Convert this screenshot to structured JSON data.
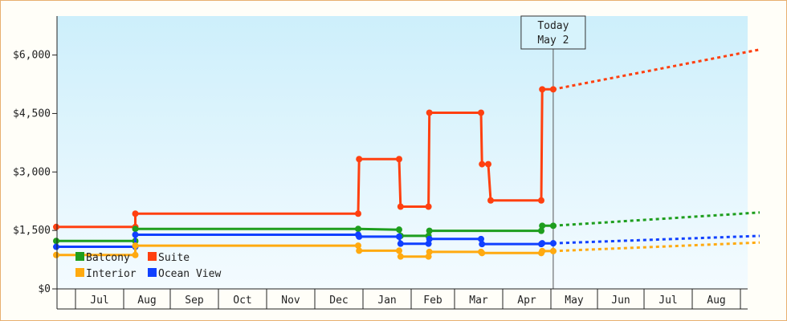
{
  "chart_data": {
    "type": "line",
    "title": "",
    "xlabel": "",
    "ylabel": "",
    "ylim": [
      0,
      7000
    ],
    "y_ticks": [
      {
        "value": 0,
        "label": "$0"
      },
      {
        "value": 1500,
        "label": "$1,500"
      },
      {
        "value": 3000,
        "label": "$3,000"
      },
      {
        "value": 4500,
        "label": "$4,500"
      },
      {
        "value": 6000,
        "label": "$6,000"
      }
    ],
    "x_months": [
      "Jul",
      "Aug",
      "Sep",
      "Oct",
      "Nov",
      "Dec",
      "Jan",
      "Feb",
      "Mar",
      "Apr",
      "May",
      "Jun",
      "Jul",
      "Aug"
    ],
    "today_marker": {
      "line1": "Today",
      "line2": "May 2",
      "x": 10.05
    },
    "legend": [
      {
        "label": "Balcony",
        "color": "#1e9e1e"
      },
      {
        "label": "Suite",
        "color": "#ff4010"
      },
      {
        "label": "Interior",
        "color": "#ffaa10"
      },
      {
        "label": "Ocean View",
        "color": "#1040ff"
      }
    ],
    "series": [
      {
        "color": "#ff4010",
        "points": [
          [
            -0.4,
            1590
          ],
          [
            1.25,
            1590
          ],
          [
            1.25,
            1930
          ],
          [
            5.9,
            1930
          ],
          [
            5.92,
            3330
          ],
          [
            6.75,
            3330
          ],
          [
            6.78,
            2110
          ],
          [
            7.4,
            2110
          ],
          [
            7.42,
            4520
          ],
          [
            8.55,
            4520
          ],
          [
            8.57,
            3200
          ],
          [
            8.7,
            3200
          ],
          [
            8.75,
            2270
          ],
          [
            9.8,
            2270
          ],
          [
            9.82,
            5120
          ],
          [
            10.05,
            5120
          ]
        ],
        "forecast": [
          [
            10.05,
            5120
          ],
          [
            14.4,
            6140
          ]
        ]
      },
      {
        "color": "#1e9e1e",
        "points": [
          [
            -0.4,
            1230
          ],
          [
            1.25,
            1230
          ],
          [
            1.25,
            1540
          ],
          [
            5.9,
            1540
          ],
          [
            6.75,
            1520
          ],
          [
            6.78,
            1360
          ],
          [
            7.4,
            1360
          ],
          [
            7.42,
            1490
          ],
          [
            8.55,
            1490
          ],
          [
            8.7,
            1490
          ],
          [
            9.8,
            1490
          ],
          [
            9.82,
            1620
          ],
          [
            10.05,
            1620
          ]
        ],
        "forecast": [
          [
            10.05,
            1620
          ],
          [
            14.4,
            1960
          ]
        ]
      },
      {
        "color": "#1040ff",
        "points": [
          [
            -0.4,
            1080
          ],
          [
            1.25,
            1080
          ],
          [
            1.25,
            1390
          ],
          [
            5.9,
            1390
          ],
          [
            5.92,
            1340
          ],
          [
            6.75,
            1340
          ],
          [
            6.78,
            1160
          ],
          [
            7.4,
            1160
          ],
          [
            7.42,
            1280
          ],
          [
            8.55,
            1280
          ],
          [
            8.57,
            1150
          ],
          [
            8.7,
            1150
          ],
          [
            9.8,
            1150
          ],
          [
            9.82,
            1170
          ],
          [
            10.05,
            1170
          ]
        ],
        "forecast": [
          [
            10.05,
            1170
          ],
          [
            14.4,
            1360
          ]
        ]
      },
      {
        "color": "#ffaa10",
        "points": [
          [
            -0.4,
            870
          ],
          [
            1.25,
            870
          ],
          [
            1.25,
            1110
          ],
          [
            5.9,
            1110
          ],
          [
            5.92,
            980
          ],
          [
            6.75,
            980
          ],
          [
            6.78,
            830
          ],
          [
            7.4,
            830
          ],
          [
            7.42,
            950
          ],
          [
            8.55,
            950
          ],
          [
            8.57,
            920
          ],
          [
            8.7,
            920
          ],
          [
            9.8,
            920
          ],
          [
            9.82,
            970
          ],
          [
            10.05,
            970
          ]
        ],
        "forecast": [
          [
            10.05,
            970
          ],
          [
            14.4,
            1190
          ]
        ]
      }
    ]
  }
}
